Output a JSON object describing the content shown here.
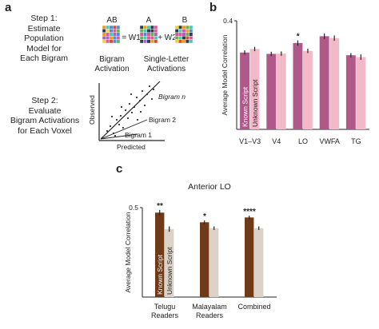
{
  "panels": {
    "a": "a",
    "b": "b",
    "c": "c"
  },
  "panel_a": {
    "step1_lines": [
      "Step 1:",
      "Estimate",
      "Population",
      "Model for",
      "Each Bigram"
    ],
    "step2_lines": [
      "Step 2:",
      "Evaluate",
      "Bigram Activations",
      "for Each Voxel"
    ],
    "equation": {
      "col_ab": "AB",
      "col_a": "A",
      "col_b": "B",
      "eq_w1": "= W1",
      "plus_w2": "+ W2",
      "bigram_activation": [
        "Bigram",
        "Activation"
      ],
      "single_letter_activations": [
        "Single-Letter",
        "Activations"
      ]
    },
    "scatter": {
      "ylabel": "Observed",
      "xlabel": "Predicted",
      "bigram_n": "Bigram n",
      "bigram_2": "Bigram 2",
      "bigram_1": "Bigram 1"
    },
    "grid_colors": [
      "#d84a3a",
      "#f4d03f",
      "#4a90d9",
      "#6ab04c",
      "#b35eb8",
      "#f39c12",
      "#2c3e50",
      "#e056a0",
      "#48c9b0"
    ]
  },
  "colors": {
    "known_b": "#b0588a",
    "unknown_b": "#f2b9c8",
    "known_c": "#6e3a18",
    "unknown_c": "#dcd2c8"
  },
  "chart_data": [
    {
      "type": "bar",
      "panel": "b",
      "ylabel": "Average Model Correlation",
      "ylim": [
        0,
        0.4
      ],
      "y_ticks": [
        "0.4"
      ],
      "categories": [
        "V1–V3",
        "V4",
        "LO",
        "VWFA",
        "TG"
      ],
      "series": [
        {
          "name": "Known Script",
          "values": [
            0.283,
            0.278,
            0.318,
            0.343,
            0.273
          ],
          "errors": [
            0.008,
            0.008,
            0.01,
            0.01,
            0.008
          ]
        },
        {
          "name": "Unknown Script",
          "values": [
            0.296,
            0.279,
            0.289,
            0.336,
            0.266
          ],
          "errors": [
            0.008,
            0.008,
            0.008,
            0.01,
            0.01
          ]
        }
      ],
      "annotations": [
        {
          "category": "LO",
          "text": "*"
        }
      ]
    },
    {
      "type": "bar",
      "panel": "c",
      "title": "Anterior LO",
      "ylabel": "Average Model Correlation",
      "ylim": [
        0,
        0.5
      ],
      "y_ticks": [
        "0.5"
      ],
      "categories": [
        [
          "Telugu",
          "Readers"
        ],
        [
          "Malayalam",
          "Readers"
        ],
        [
          "Combined"
        ]
      ],
      "series": [
        {
          "name": "Known Script",
          "values": [
            0.472,
            0.418,
            0.445
          ],
          "errors": [
            0.015,
            0.01,
            0.01
          ]
        },
        {
          "name": "Unknown Script",
          "values": [
            0.38,
            0.385,
            0.385
          ],
          "errors": [
            0.015,
            0.01,
            0.01
          ]
        }
      ],
      "annotations": [
        {
          "category": "Telugu Readers",
          "text": "**"
        },
        {
          "category": "Malayalam Readers",
          "text": "*"
        },
        {
          "category": "Combined",
          "text": "****"
        }
      ]
    }
  ]
}
